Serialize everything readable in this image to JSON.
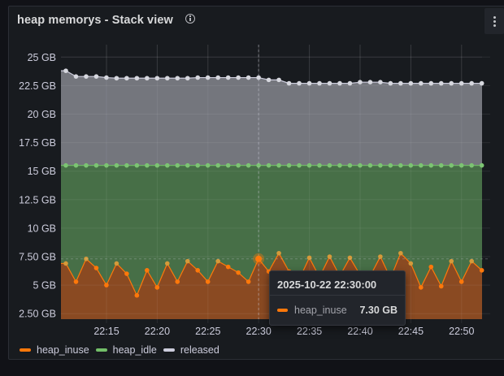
{
  "panel": {
    "title": "heap memorys - Stack view",
    "info_icon": "info-circle-icon",
    "menu_icon": "kebab-menu-icon"
  },
  "colors": {
    "heap_inuse": "#ff780a",
    "heap_idle": "#73bf69",
    "released": "#ccccdc",
    "fill_inuse": "#8a4a22",
    "fill_idle": "#476f47",
    "fill_released": "#74767d"
  },
  "tooltip": {
    "timestamp": "2025-10-22 22:30:00",
    "series": "heap_inuse",
    "value": "7.30 GB"
  },
  "legend": [
    {
      "label": "heap_inuse",
      "color": "#ff780a"
    },
    {
      "label": "heap_idle",
      "color": "#73bf69"
    },
    {
      "label": "released",
      "color": "#ccccdc"
    }
  ],
  "chart_data": {
    "type": "area",
    "stacked": true,
    "title": "heap memorys - Stack view",
    "xlabel": "",
    "ylabel": "",
    "y_unit": "GB",
    "ylim": [
      2.0,
      26.0
    ],
    "y_ticks": [
      "2.50 GB",
      "5 GB",
      "7.50 GB",
      "10 GB",
      "12.5 GB",
      "15 GB",
      "17.5 GB",
      "20 GB",
      "22.5 GB",
      "25 GB"
    ],
    "x_ticks": [
      "22:15",
      "22:20",
      "22:25",
      "22:30",
      "22:35",
      "22:40",
      "22:45",
      "22:50"
    ],
    "x": [
      "22:11",
      "22:12",
      "22:13",
      "22:14",
      "22:15",
      "22:16",
      "22:17",
      "22:18",
      "22:19",
      "22:20",
      "22:21",
      "22:22",
      "22:23",
      "22:24",
      "22:25",
      "22:26",
      "22:27",
      "22:28",
      "22:29",
      "22:30",
      "22:31",
      "22:32",
      "22:33",
      "22:34",
      "22:35",
      "22:36",
      "22:37",
      "22:38",
      "22:39",
      "22:40",
      "22:41",
      "22:42",
      "22:43",
      "22:44",
      "22:45",
      "22:46",
      "22:47",
      "22:48",
      "22:49",
      "22:50",
      "22:51",
      "22:52"
    ],
    "legend_position": "bottom",
    "grid": true,
    "series": [
      {
        "name": "heap_inuse",
        "stacked_total": [
          6.9,
          5.3,
          7.3,
          6.5,
          5.0,
          6.9,
          6.0,
          4.1,
          6.3,
          4.8,
          6.9,
          5.3,
          7.1,
          6.3,
          5.3,
          7.1,
          6.6,
          6.1,
          5.3,
          7.3,
          6.2,
          7.8,
          6.2,
          5.5,
          7.4,
          5.7,
          7.5,
          5.8,
          7.4,
          5.9,
          5.8,
          7.5,
          5.6,
          7.8,
          6.9,
          4.8,
          6.6,
          4.9,
          7.1,
          5.3,
          7.1,
          6.3
        ]
      },
      {
        "name": "heap_idle",
        "stacked_total": [
          15.5,
          15.5,
          15.5,
          15.5,
          15.5,
          15.5,
          15.5,
          15.5,
          15.5,
          15.5,
          15.5,
          15.5,
          15.5,
          15.5,
          15.5,
          15.5,
          15.5,
          15.5,
          15.5,
          15.5,
          15.5,
          15.5,
          15.5,
          15.5,
          15.5,
          15.5,
          15.5,
          15.5,
          15.5,
          15.5,
          15.5,
          15.5,
          15.5,
          15.5,
          15.5,
          15.5,
          15.5,
          15.5,
          15.5,
          15.5,
          15.5,
          15.5
        ]
      },
      {
        "name": "released",
        "stacked_total": [
          23.8,
          23.3,
          23.3,
          23.3,
          23.2,
          23.15,
          23.15,
          23.15,
          23.15,
          23.15,
          23.15,
          23.15,
          23.15,
          23.2,
          23.2,
          23.2,
          23.2,
          23.2,
          23.2,
          23.2,
          23.0,
          23.0,
          22.7,
          22.7,
          22.7,
          22.7,
          22.7,
          22.7,
          22.7,
          22.8,
          22.8,
          22.8,
          22.7,
          22.7,
          22.7,
          22.7,
          22.7,
          22.7,
          22.7,
          22.7,
          22.7,
          22.7
        ]
      }
    ],
    "crosshair_x": "22:30"
  }
}
